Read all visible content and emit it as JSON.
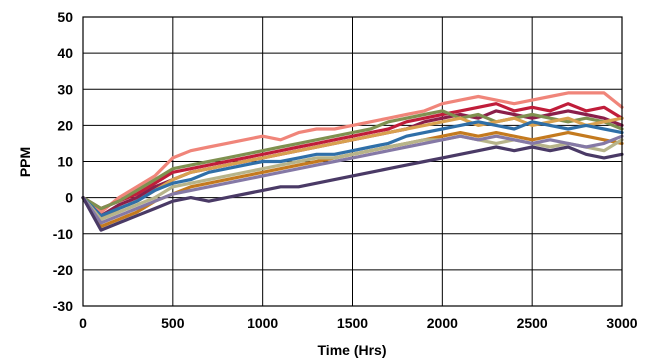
{
  "chart_data": {
    "type": "line",
    "title": "",
    "xlabel": "Time (Hrs)",
    "ylabel": "PPM",
    "xlim": [
      0,
      3000
    ],
    "ylim": [
      -30,
      50
    ],
    "x_ticks": [
      0,
      500,
      1000,
      1500,
      2000,
      2500,
      3000
    ],
    "y_ticks": [
      -30,
      -20,
      -10,
      0,
      10,
      20,
      30,
      40,
      50
    ],
    "x_tick_labels": [
      "0",
      "500",
      "1000",
      "1500",
      "2000",
      "2500",
      "3000"
    ],
    "y_tick_labels": [
      "-30",
      "-20",
      "-10",
      "0",
      "10",
      "20",
      "30",
      "40",
      "50"
    ],
    "grid": true,
    "legend": "none",
    "x": [
      0,
      100,
      200,
      300,
      400,
      500,
      600,
      700,
      800,
      900,
      1000,
      1100,
      1200,
      1300,
      1400,
      1500,
      1600,
      1700,
      1800,
      1900,
      2000,
      2100,
      2200,
      2300,
      2400,
      2500,
      2600,
      2700,
      2800,
      2900,
      3000
    ],
    "series": [
      {
        "color": "#f0857a",
        "values": [
          0,
          -4,
          0,
          3,
          6,
          11,
          13,
          14,
          15,
          16,
          17,
          16,
          18,
          19,
          19,
          20,
          21,
          22,
          23,
          24,
          26,
          27,
          28,
          27,
          26,
          27,
          28,
          29,
          29,
          29,
          25
        ]
      },
      {
        "color": "#c01d3a",
        "values": [
          0,
          -3,
          -1,
          1,
          4,
          7,
          8,
          9,
          10,
          11,
          12,
          13,
          14,
          15,
          16,
          17,
          18,
          19,
          21,
          22,
          23,
          24,
          25,
          26,
          24,
          25,
          24,
          26,
          24,
          25,
          22
        ]
      },
      {
        "color": "#8a1f4a",
        "values": [
          0,
          -5,
          -2,
          0,
          3,
          5,
          7,
          8,
          9,
          10,
          11,
          12,
          13,
          14,
          15,
          16,
          17,
          18,
          19,
          21,
          22,
          23,
          22,
          24,
          23,
          22,
          23,
          24,
          23,
          22,
          20
        ]
      },
      {
        "color": "#7f9150",
        "values": [
          0,
          -3,
          -1,
          2,
          5,
          8,
          9,
          10,
          11,
          12,
          13,
          14,
          15,
          16,
          17,
          18,
          19,
          21,
          22,
          23,
          24,
          22,
          23,
          21,
          22,
          23,
          22,
          21,
          22,
          21,
          19
        ]
      },
      {
        "color": "#d9a14f",
        "values": [
          0,
          -6,
          -3,
          -1,
          2,
          5,
          7,
          8,
          9,
          10,
          11,
          12,
          13,
          14,
          15,
          16,
          17,
          18,
          19,
          20,
          21,
          22,
          20,
          21,
          22,
          20,
          21,
          22,
          20,
          21,
          22
        ]
      },
      {
        "color": "#2f6fa8",
        "values": [
          0,
          -5,
          -3,
          -1,
          2,
          4,
          5,
          7,
          8,
          9,
          10,
          10,
          11,
          12,
          12,
          13,
          14,
          15,
          17,
          18,
          19,
          20,
          21,
          20,
          19,
          21,
          20,
          19,
          20,
          19,
          18
        ]
      },
      {
        "color": "#c47a1f",
        "values": [
          0,
          -8,
          -6,
          -4,
          -1,
          1,
          3,
          4,
          5,
          6,
          7,
          8,
          9,
          10,
          11,
          12,
          13,
          14,
          15,
          16,
          17,
          18,
          17,
          18,
          17,
          16,
          17,
          18,
          17,
          16,
          15
        ]
      },
      {
        "color": "#b7b48a",
        "values": [
          0,
          -6,
          -4,
          -2,
          0,
          3,
          4,
          5,
          6,
          7,
          8,
          9,
          10,
          11,
          11,
          12,
          13,
          14,
          15,
          16,
          16,
          17,
          16,
          15,
          16,
          15,
          14,
          15,
          14,
          13,
          16
        ]
      },
      {
        "color": "#8579a6",
        "values": [
          0,
          -7,
          -5,
          -3,
          -1,
          1,
          2,
          3,
          4,
          5,
          6,
          7,
          8,
          9,
          10,
          11,
          12,
          13,
          14,
          15,
          16,
          17,
          16,
          17,
          16,
          15,
          16,
          15,
          14,
          15,
          17
        ]
      },
      {
        "color": "#4a3a66",
        "values": [
          0,
          -9,
          -7,
          -5,
          -3,
          -1,
          0,
          -1,
          0,
          1,
          2,
          3,
          3,
          4,
          5,
          6,
          7,
          8,
          9,
          10,
          11,
          12,
          13,
          14,
          13,
          14,
          13,
          14,
          12,
          11,
          12
        ]
      }
    ]
  }
}
